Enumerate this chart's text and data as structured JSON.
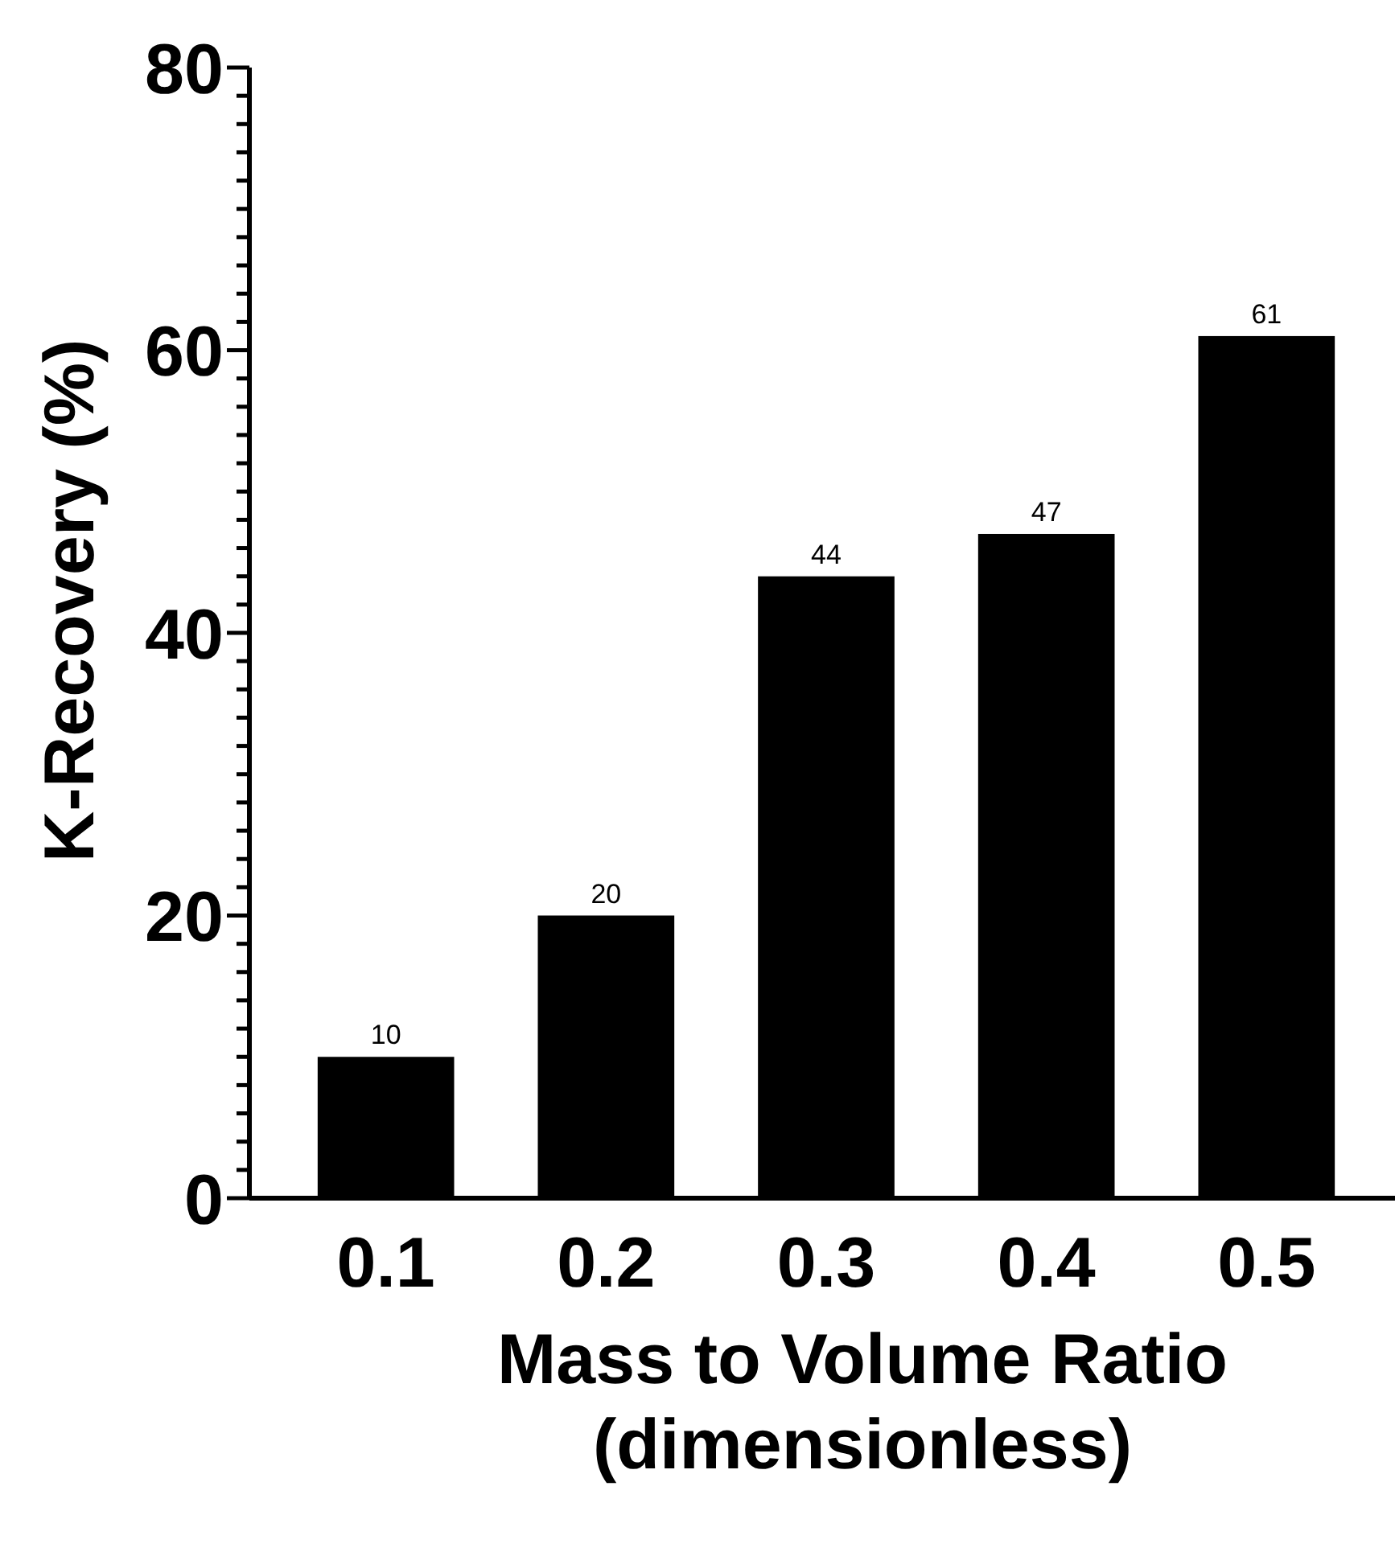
{
  "chart_data": {
    "type": "bar",
    "xlabel": "Mass to Volume Ratio\n(dimensionless)",
    "ylabel": "K-Recovery (%)",
    "categories": [
      "0.1",
      "0.2",
      "0.3",
      "0.4",
      "0.5"
    ],
    "values": [
      10,
      20,
      44,
      47,
      61
    ],
    "color": "#000000",
    "data_labels": true,
    "grid": false,
    "ylim": [
      0,
      80
    ],
    "yticks": [
      0,
      {
        "value": 2,
        "label": null
      },
      {
        "value": 4,
        "label": null
      },
      {
        "value": 6,
        "label": null
      },
      {
        "value": 8,
        "label": null
      },
      {
        "value": 10,
        "label": null
      },
      {
        "value": 12,
        "label": null
      },
      {
        "value": 14,
        "label": null
      },
      {
        "value": 16,
        "label": null
      },
      {
        "value": 18,
        "label": null
      },
      20,
      {
        "value": 22,
        "label": null
      },
      {
        "value": 24,
        "label": null
      },
      {
        "value": 26,
        "label": null
      },
      {
        "value": 28,
        "label": null
      },
      {
        "value": 30,
        "label": null
      },
      {
        "value": 32,
        "label": null
      },
      {
        "value": 34,
        "label": null
      },
      {
        "value": 36,
        "label": null
      },
      {
        "value": 38,
        "label": null
      },
      40,
      {
        "value": 42,
        "label": null
      },
      {
        "value": 44,
        "label": null
      },
      {
        "value": 46,
        "label": null
      },
      {
        "value": 48,
        "label": null
      },
      {
        "value": 50,
        "label": null
      },
      {
        "value": 52,
        "label": null
      },
      {
        "value": 54,
        "label": null
      },
      {
        "value": 56,
        "label": null
      },
      {
        "value": 58,
        "label": null
      },
      60,
      {
        "value": 62,
        "label": null
      },
      {
        "value": 64,
        "label": null
      },
      {
        "value": 66,
        "label": null
      },
      {
        "value": 68,
        "label": null
      },
      {
        "value": 70,
        "label": null
      },
      {
        "value": 72,
        "label": null
      },
      {
        "value": 74,
        "label": null
      },
      {
        "value": 76,
        "label": null
      },
      {
        "value": 78,
        "label": null
      },
      80
    ]
  }
}
